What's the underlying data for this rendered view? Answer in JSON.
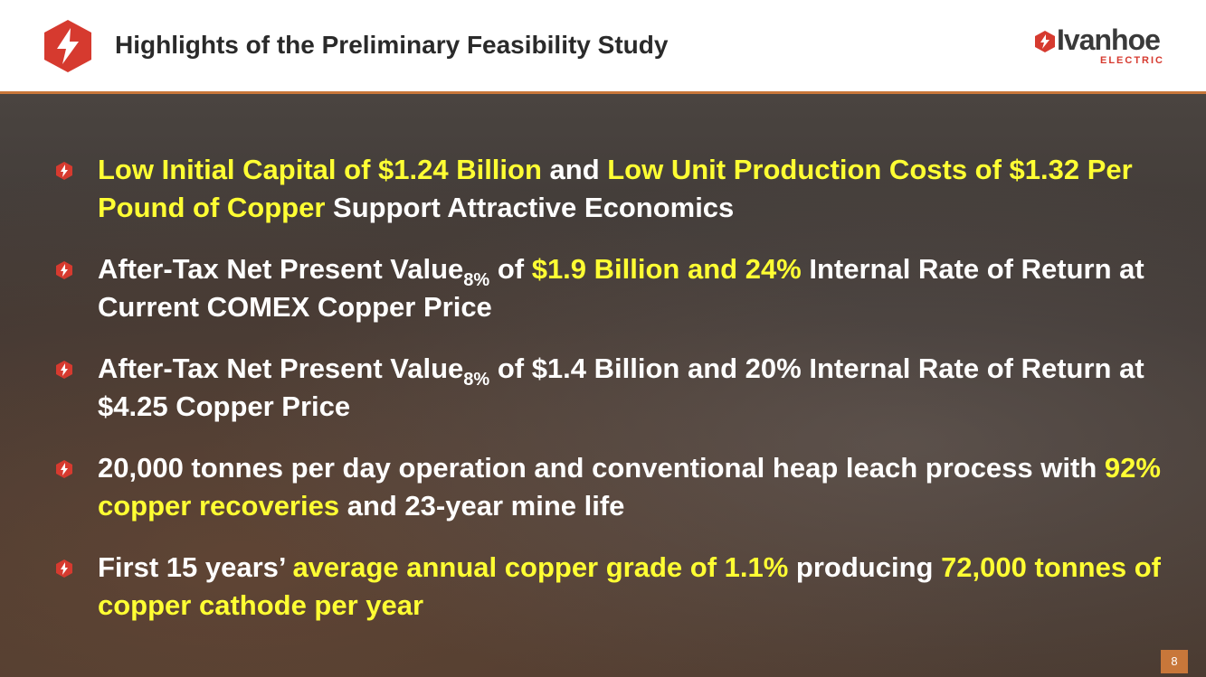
{
  "header": {
    "title": "Highlights of the Preliminary Feasibility Study",
    "logo_name": "Ivanhoe",
    "logo_sub": "ELECTRIC"
  },
  "bullets": [
    {
      "segments": [
        {
          "text": "Low Initial Capital of $1.24 Billion",
          "style": "highlight"
        },
        {
          "text": " and ",
          "style": "plain"
        },
        {
          "text": "Low Unit Production Costs of $1.32 Per Pound of Copper",
          "style": "highlight"
        },
        {
          "text": " Support Attractive Economics",
          "style": "plain"
        }
      ]
    },
    {
      "segments": [
        {
          "text": "After-Tax Net Present Value",
          "style": "plain"
        },
        {
          "text": "8%",
          "style": "sub"
        },
        {
          "text": " of ",
          "style": "plain"
        },
        {
          "text": "$1.9 Billion and 24%",
          "style": "highlight"
        },
        {
          "text": " Internal Rate of Return at Current COMEX Copper Price",
          "style": "plain"
        }
      ]
    },
    {
      "segments": [
        {
          "text": "After-Tax Net Present Value",
          "style": "plain"
        },
        {
          "text": "8%",
          "style": "sub"
        },
        {
          "text": " of $1.4 Billion and 20% Internal Rate of Return at $4.25 Copper Price",
          "style": "plain"
        }
      ]
    },
    {
      "segments": [
        {
          "text": "20,000 tonnes per day operation and conventional heap leach process with ",
          "style": "plain"
        },
        {
          "text": "92% copper recoveries",
          "style": "highlight"
        },
        {
          "text": " and 23-year mine life",
          "style": "plain"
        }
      ]
    },
    {
      "segments": [
        {
          "text": "First 15 years’ ",
          "style": "plain"
        },
        {
          "text": "average annual copper grade of 1.1%",
          "style": "highlight"
        },
        {
          "text": " producing ",
          "style": "plain"
        },
        {
          "text": "72,000 tonnes of copper cathode per year",
          "style": "highlight"
        }
      ]
    }
  ],
  "page_number": 8
}
